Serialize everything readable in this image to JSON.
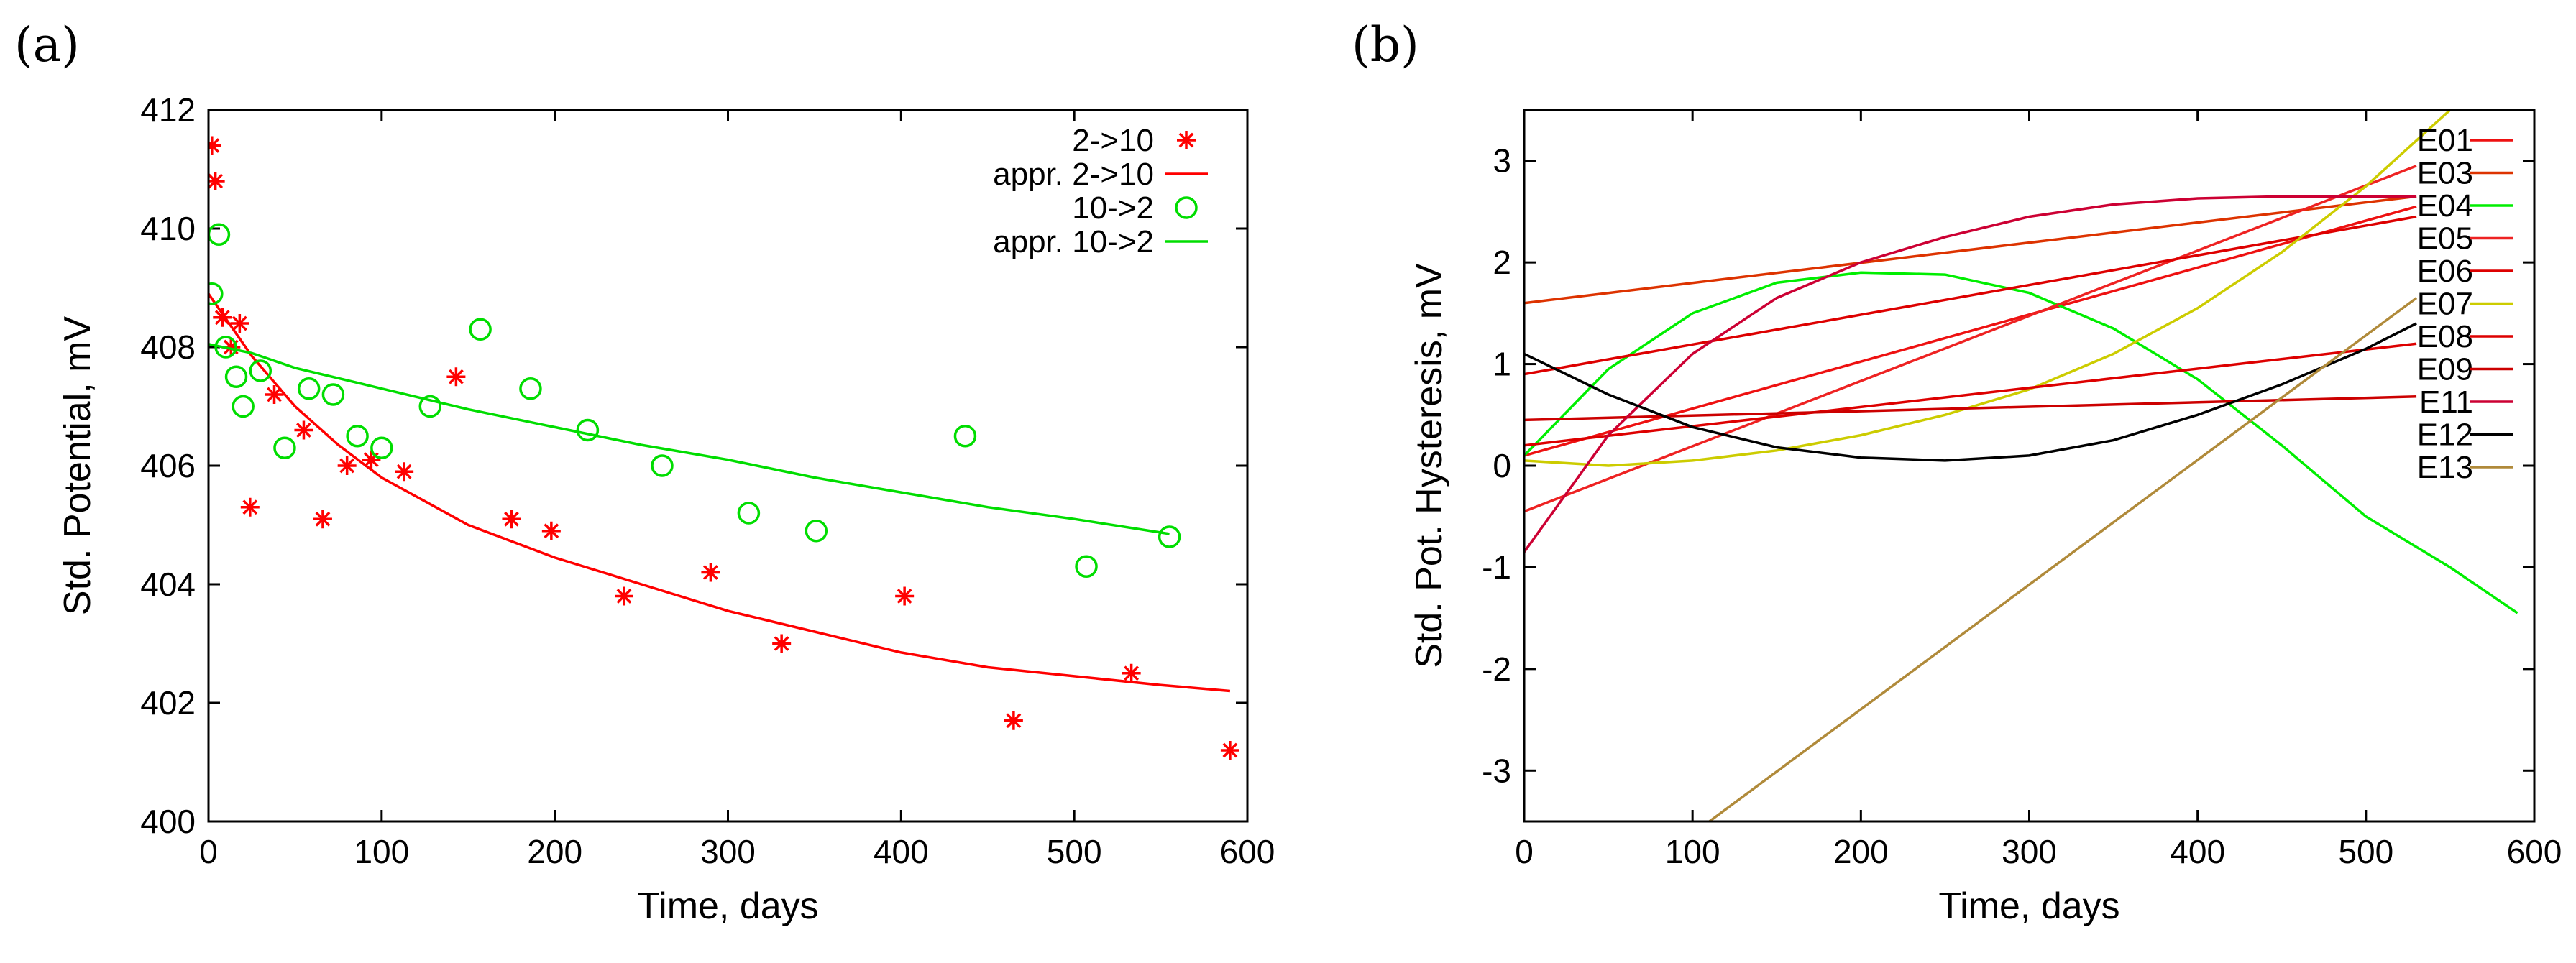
{
  "chart_data": [
    {
      "panel_label": "(a)",
      "type": "scatter",
      "xlabel": "Time, days",
      "ylabel": "Std. Potential, mV",
      "xlim": [
        0,
        600
      ],
      "ylim": [
        400,
        412
      ],
      "xticks": [
        0,
        100,
        200,
        300,
        400,
        500,
        600
      ],
      "yticks": [
        400,
        402,
        404,
        406,
        408,
        410,
        412
      ],
      "legend_position": "top-right",
      "series": [
        {
          "name": "2->10",
          "kind": "points",
          "marker": "star",
          "color": "#ff0000",
          "points": [
            [
              2,
              411.4
            ],
            [
              4,
              410.8
            ],
            [
              8,
              408.5
            ],
            [
              13,
              408.0
            ],
            [
              18,
              408.4
            ],
            [
              24,
              405.3
            ],
            [
              38,
              407.2
            ],
            [
              55,
              406.6
            ],
            [
              66,
              405.1
            ],
            [
              80,
              406.0
            ],
            [
              94,
              406.1
            ],
            [
              113,
              405.9
            ],
            [
              143,
              407.5
            ],
            [
              175,
              405.1
            ],
            [
              198,
              404.9
            ],
            [
              240,
              403.8
            ],
            [
              290,
              404.2
            ],
            [
              331,
              403.0
            ],
            [
              402,
              403.8
            ],
            [
              465,
              401.7
            ],
            [
              533,
              402.5
            ],
            [
              590,
              401.2
            ]
          ]
        },
        {
          "name": "appr. 2->10",
          "kind": "line",
          "color": "#ff0000",
          "points": [
            [
              0,
              408.9
            ],
            [
              25,
              407.85
            ],
            [
              50,
              407.0
            ],
            [
              75,
              406.35
            ],
            [
              100,
              405.8
            ],
            [
              150,
              405.0
            ],
            [
              200,
              404.45
            ],
            [
              250,
              404.0
            ],
            [
              300,
              403.55
            ],
            [
              350,
              403.2
            ],
            [
              400,
              402.85
            ],
            [
              450,
              402.6
            ],
            [
              500,
              402.45
            ],
            [
              550,
              402.3
            ],
            [
              590,
              402.2
            ]
          ]
        },
        {
          "name": "10->2",
          "kind": "points",
          "marker": "circle",
          "color": "#00dd00",
          "points": [
            [
              2,
              408.9
            ],
            [
              6,
              409.9
            ],
            [
              10,
              408.0
            ],
            [
              16,
              407.5
            ],
            [
              20,
              407.0
            ],
            [
              30,
              407.6
            ],
            [
              44,
              406.3
            ],
            [
              58,
              407.3
            ],
            [
              72,
              407.2
            ],
            [
              86,
              406.5
            ],
            [
              100,
              406.3
            ],
            [
              128,
              407.0
            ],
            [
              157,
              408.3
            ],
            [
              186,
              407.3
            ],
            [
              219,
              406.6
            ],
            [
              262,
              406.0
            ],
            [
              312,
              405.2
            ],
            [
              351,
              404.9
            ],
            [
              437,
              406.5
            ],
            [
              507,
              404.3
            ],
            [
              555,
              404.8
            ]
          ]
        },
        {
          "name": "appr. 10->2",
          "kind": "line",
          "color": "#00dd00",
          "points": [
            [
              0,
              408.05
            ],
            [
              25,
              407.9
            ],
            [
              50,
              407.65
            ],
            [
              100,
              407.3
            ],
            [
              150,
              406.95
            ],
            [
              200,
              406.65
            ],
            [
              250,
              406.35
            ],
            [
              300,
              406.1
            ],
            [
              350,
              405.8
            ],
            [
              400,
              405.55
            ],
            [
              450,
              405.3
            ],
            [
              500,
              405.1
            ],
            [
              555,
              404.85
            ]
          ]
        }
      ]
    },
    {
      "panel_label": "(b)",
      "type": "line",
      "xlabel": "Time, days",
      "ylabel": "Std. Pot. Hysteresis, mV",
      "xlim": [
        0,
        600
      ],
      "ylim": [
        -3.5,
        3.5
      ],
      "xticks": [
        0,
        100,
        200,
        300,
        400,
        500,
        600
      ],
      "yticks": [
        -3,
        -2,
        -1,
        0,
        1,
        2,
        3
      ],
      "legend_position": "top-right",
      "series": [
        {
          "name": "E01",
          "color": "#ee1111",
          "points": [
            [
              0,
              0.1
            ],
            [
              530,
              2.55
            ]
          ]
        },
        {
          "name": "E03",
          "color": "#dd3300",
          "points": [
            [
              0,
              1.6
            ],
            [
              530,
              2.65
            ]
          ]
        },
        {
          "name": "E04",
          "color": "#00ee00",
          "points": [
            [
              0,
              0.1
            ],
            [
              50,
              0.95
            ],
            [
              100,
              1.5
            ],
            [
              150,
              1.8
            ],
            [
              200,
              1.9
            ],
            [
              250,
              1.88
            ],
            [
              300,
              1.7
            ],
            [
              350,
              1.35
            ],
            [
              400,
              0.85
            ],
            [
              450,
              0.2
            ],
            [
              500,
              -0.5
            ],
            [
              550,
              -1.0
            ],
            [
              590,
              -1.45
            ]
          ]
        },
        {
          "name": "E05",
          "color": "#ee2222",
          "points": [
            [
              0,
              -0.45
            ],
            [
              530,
              2.95
            ]
          ]
        },
        {
          "name": "E06",
          "color": "#dd0000",
          "points": [
            [
              0,
              0.9
            ],
            [
              530,
              2.45
            ]
          ]
        },
        {
          "name": "E07",
          "color": "#cccc00",
          "points": [
            [
              0,
              0.05
            ],
            [
              50,
              0.0
            ],
            [
              100,
              0.05
            ],
            [
              150,
              0.15
            ],
            [
              200,
              0.3
            ],
            [
              250,
              0.5
            ],
            [
              300,
              0.75
            ],
            [
              350,
              1.1
            ],
            [
              400,
              1.55
            ],
            [
              450,
              2.1
            ],
            [
              500,
              2.75
            ],
            [
              550,
              3.5
            ]
          ]
        },
        {
          "name": "E08",
          "color": "#dd0000",
          "points": [
            [
              0,
              0.2
            ],
            [
              530,
              1.2
            ]
          ]
        },
        {
          "name": "E09",
          "color": "#cc0000",
          "points": [
            [
              0,
              0.45
            ],
            [
              530,
              0.68
            ]
          ]
        },
        {
          "name": "E11",
          "color": "#cc0033",
          "points": [
            [
              0,
              -0.85
            ],
            [
              50,
              0.3
            ],
            [
              100,
              1.1
            ],
            [
              150,
              1.65
            ],
            [
              200,
              2.0
            ],
            [
              250,
              2.25
            ],
            [
              300,
              2.45
            ],
            [
              350,
              2.57
            ],
            [
              400,
              2.63
            ],
            [
              450,
              2.65
            ],
            [
              530,
              2.65
            ]
          ]
        },
        {
          "name": "E12",
          "color": "#000000",
          "points": [
            [
              0,
              1.1
            ],
            [
              50,
              0.7
            ],
            [
              100,
              0.38
            ],
            [
              150,
              0.18
            ],
            [
              200,
              0.08
            ],
            [
              250,
              0.05
            ],
            [
              300,
              0.1
            ],
            [
              350,
              0.25
            ],
            [
              400,
              0.5
            ],
            [
              450,
              0.8
            ],
            [
              500,
              1.15
            ],
            [
              530,
              1.4
            ]
          ]
        },
        {
          "name": "E13",
          "color": "#b08a3a",
          "points": [
            [
              110,
              -3.5
            ],
            [
              530,
              1.65
            ]
          ]
        }
      ]
    }
  ]
}
